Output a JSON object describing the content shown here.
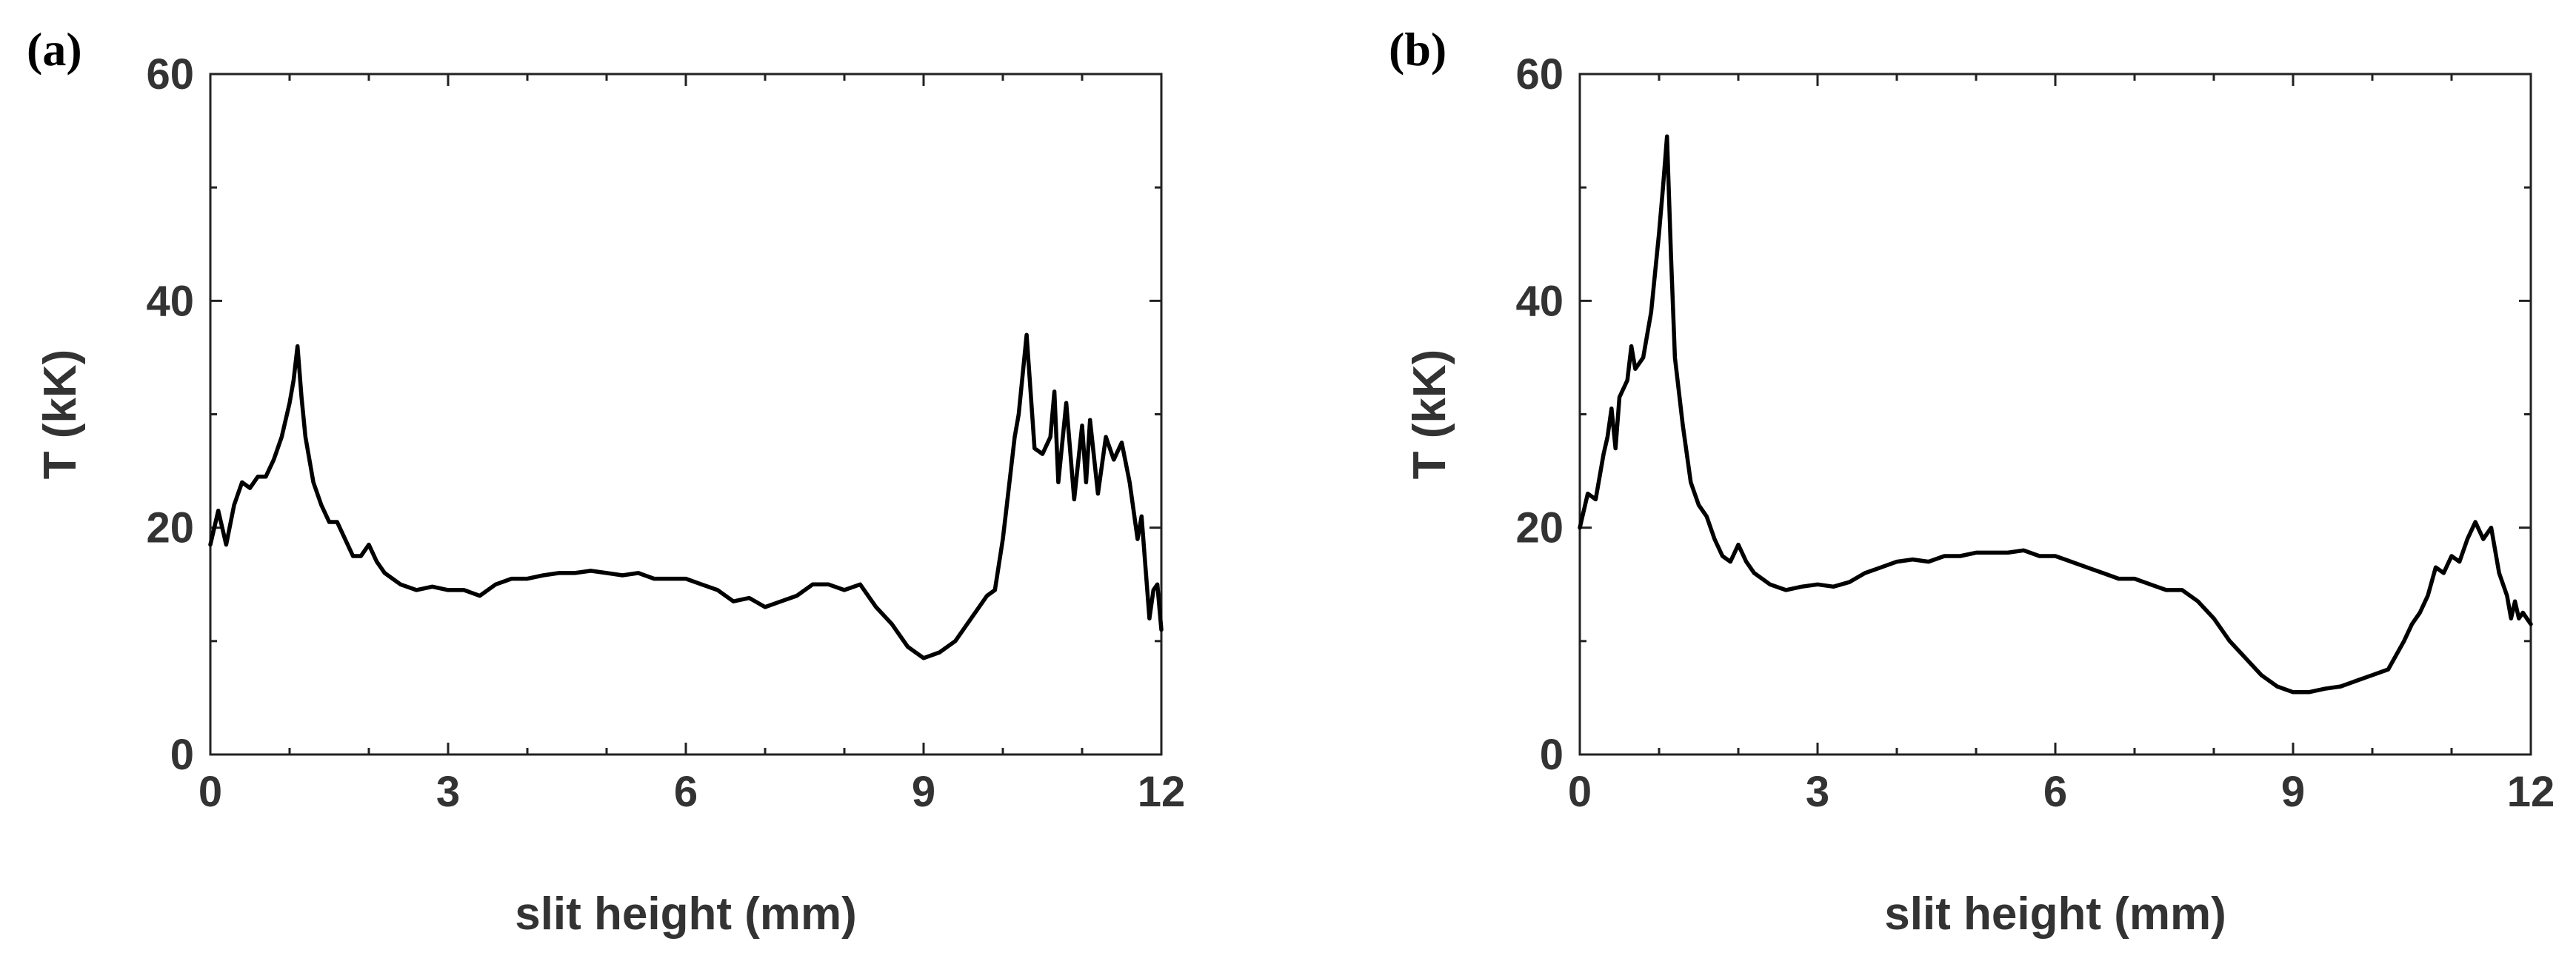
{
  "chart_data": [
    {
      "type": "line",
      "panel_label": "(a)",
      "xlabel": "slit height (mm)",
      "ylabel": "T (kK)",
      "xlim": [
        0,
        12
      ],
      "ylim": [
        0,
        60
      ],
      "xticks": [
        "0",
        "3",
        "6",
        "9",
        "12"
      ],
      "yticks": [
        "0",
        "20",
        "40",
        "60"
      ],
      "grid": false,
      "series": [
        {
          "x": [
            0,
            0.1,
            0.2,
            0.3,
            0.4,
            0.5,
            0.6,
            0.7,
            0.8,
            0.9,
            1.0,
            1.05,
            1.1,
            1.15,
            1.2,
            1.3,
            1.4,
            1.5,
            1.6,
            1.7,
            1.8,
            1.9,
            2.0,
            2.1,
            2.2,
            2.3,
            2.4,
            2.6,
            2.8,
            3.0,
            3.2,
            3.4,
            3.6,
            3.8,
            4.0,
            4.2,
            4.4,
            4.6,
            4.8,
            5.0,
            5.2,
            5.4,
            5.6,
            5.8,
            6.0,
            6.2,
            6.4,
            6.6,
            6.8,
            7.0,
            7.2,
            7.4,
            7.6,
            7.8,
            8.0,
            8.2,
            8.4,
            8.6,
            8.8,
            9.0,
            9.2,
            9.4,
            9.6,
            9.7,
            9.8,
            9.9,
            10.0,
            10.05,
            10.1,
            10.15,
            10.2,
            10.3,
            10.4,
            10.5,
            10.6,
            10.65,
            10.7,
            10.8,
            10.9,
            11.0,
            11.05,
            11.1,
            11.2,
            11.3,
            11.4,
            11.5,
            11.6,
            11.7,
            11.75,
            11.8,
            11.85,
            11.9,
            11.95,
            12.0
          ],
          "values": [
            18.5,
            21.5,
            18.5,
            22,
            24,
            23.5,
            24.5,
            24.5,
            26,
            28,
            31,
            33,
            36,
            31.5,
            28,
            24,
            22,
            20.5,
            20.5,
            19,
            17.5,
            17.5,
            18.5,
            17,
            16,
            15.5,
            15,
            14.5,
            14.8,
            14.5,
            14.5,
            14,
            15,
            15.5,
            15.5,
            15.8,
            16,
            16,
            16.2,
            16,
            15.8,
            16,
            15.5,
            15.5,
            15.5,
            15,
            14.5,
            13.5,
            13.8,
            13,
            13.5,
            14,
            15,
            15,
            14.5,
            15,
            13,
            11.5,
            9.5,
            8.5,
            9,
            10,
            12,
            13,
            14,
            14.5,
            19,
            22,
            25,
            28,
            30,
            37,
            27,
            26.5,
            28,
            32,
            24,
            31,
            22.5,
            29,
            24,
            29.5,
            23,
            28,
            26,
            27.5,
            24,
            19,
            21,
            16.5,
            12,
            14.5,
            15,
            11
          ]
        }
      ]
    },
    {
      "type": "line",
      "panel_label": "(b)",
      "xlabel": "slit height (mm)",
      "ylabel": "T (kK)",
      "xlim": [
        0,
        12
      ],
      "ylim": [
        0,
        60
      ],
      "xticks": [
        "0",
        "3",
        "6",
        "9",
        "12"
      ],
      "yticks": [
        "0",
        "20",
        "40",
        "60"
      ],
      "grid": false,
      "series": [
        {
          "x": [
            0,
            0.1,
            0.2,
            0.3,
            0.35,
            0.4,
            0.45,
            0.5,
            0.6,
            0.65,
            0.7,
            0.8,
            0.85,
            0.9,
            1.0,
            1.05,
            1.1,
            1.15,
            1.2,
            1.3,
            1.4,
            1.5,
            1.6,
            1.7,
            1.8,
            1.9,
            2.0,
            2.1,
            2.2,
            2.4,
            2.6,
            2.8,
            3.0,
            3.2,
            3.4,
            3.6,
            3.8,
            4.0,
            4.2,
            4.4,
            4.6,
            4.8,
            5.0,
            5.2,
            5.4,
            5.6,
            5.8,
            6.0,
            6.2,
            6.4,
            6.6,
            6.8,
            7.0,
            7.2,
            7.4,
            7.6,
            7.8,
            8.0,
            8.2,
            8.4,
            8.6,
            8.8,
            9.0,
            9.2,
            9.4,
            9.6,
            9.8,
            10.0,
            10.2,
            10.4,
            10.5,
            10.6,
            10.7,
            10.8,
            10.9,
            11.0,
            11.1,
            11.2,
            11.3,
            11.4,
            11.5,
            11.6,
            11.7,
            11.75,
            11.8,
            11.85,
            11.9,
            12.0
          ],
          "values": [
            20,
            23,
            22.5,
            26.5,
            28,
            30.5,
            27,
            31.5,
            33,
            36,
            34,
            35,
            37,
            39,
            46,
            50,
            54.5,
            44,
            35,
            29,
            24,
            22,
            21,
            19,
            17.5,
            17,
            18.5,
            17,
            16,
            15,
            14.5,
            14.8,
            15,
            14.8,
            15.2,
            16,
            16.5,
            17,
            17.2,
            17,
            17.5,
            17.5,
            17.8,
            17.8,
            17.8,
            18,
            17.5,
            17.5,
            17,
            16.5,
            16,
            15.5,
            15.5,
            15,
            14.5,
            14.5,
            13.5,
            12,
            10,
            8.5,
            7,
            6,
            5.5,
            5.5,
            5.8,
            6,
            6.5,
            7,
            7.5,
            10,
            11.5,
            12.5,
            14,
            16.5,
            16,
            17.5,
            17,
            19,
            20.5,
            19,
            20,
            16,
            14,
            12,
            13.5,
            12,
            12.5,
            11.5
          ]
        }
      ]
    }
  ]
}
